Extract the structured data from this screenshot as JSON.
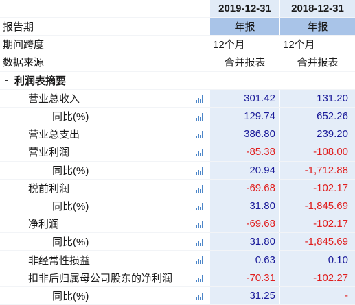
{
  "columns": [
    "2019-12-31",
    "2018-12-31"
  ],
  "rows": [
    {
      "label": "报告期",
      "v1": "年报",
      "v2": "年报"
    },
    {
      "label": "期间跨度",
      "v1": "12个月",
      "v2": "12个月"
    },
    {
      "label": "数据来源",
      "v1": "合并报表",
      "v2": "合并报表"
    },
    {
      "label": "利润表摘要"
    },
    {
      "label": "营业总收入",
      "v1": "301.42",
      "v2": "131.20"
    },
    {
      "label": "同比(%)",
      "v1": "129.74",
      "v2": "652.26"
    },
    {
      "label": "营业总支出",
      "v1": "386.80",
      "v2": "239.20"
    },
    {
      "label": "营业利润",
      "v1": "-85.38",
      "v2": "-108.00"
    },
    {
      "label": "同比(%)",
      "v1": "20.94",
      "v2": "-1,712.88"
    },
    {
      "label": "税前利润",
      "v1": "-69.68",
      "v2": "-102.17"
    },
    {
      "label": "同比(%)",
      "v1": "31.80",
      "v2": "-1,845.69"
    },
    {
      "label": "净利润",
      "v1": "-69.68",
      "v2": "-102.17"
    },
    {
      "label": "同比(%)",
      "v1": "31.80",
      "v2": "-1,845.69"
    },
    {
      "label": "非经常性损益",
      "v1": "0.63",
      "v2": "0.10"
    },
    {
      "label": "扣非后归属母公司股东的净利润",
      "v1": "-70.31",
      "v2": "-102.27"
    },
    {
      "label": "同比(%)",
      "v1": "31.25",
      "v2": "-"
    }
  ],
  "colors": {
    "header_bg": "#e1ebf7",
    "period_bg": "#a9c4e8",
    "value_bg": "#e4edf8",
    "negative": "#e01e1e",
    "positive": "#1a1a99",
    "chart_icon": "#4d86c8"
  },
  "icons": {
    "collapse": "minus-square-icon",
    "chart": "bar-chart-icon"
  }
}
